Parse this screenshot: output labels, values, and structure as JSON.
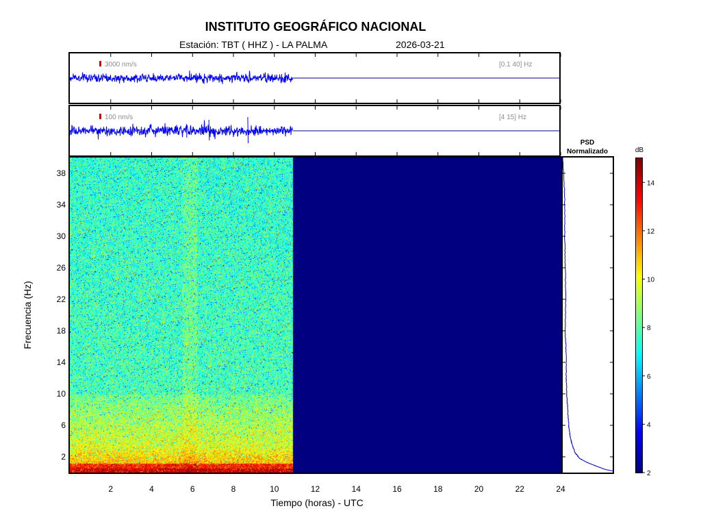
{
  "title": "INSTITUTO GEOGRÁFICO NACIONAL",
  "station_label": "Estación:  TBT ( HHZ ) - LA PALMA",
  "date": "2026-03-21",
  "colors": {
    "trace": "#0000ff",
    "frame": "#000000",
    "scale_mark": "#e00000",
    "flatline": "#00008c",
    "no_data": "#00008c"
  },
  "chart_data": [
    {
      "type": "line",
      "name": "trace-broadband",
      "scale_text": "3000 nm/s",
      "band_text": "[0.1 40] Hz",
      "x_range": [
        0,
        24
      ],
      "data_end_hours": 10.9,
      "spikes_at_hours": []
    },
    {
      "type": "line",
      "name": "trace-filtered",
      "scale_text": "100 nm/s",
      "band_text": "[4 15] Hz",
      "x_range": [
        0,
        24
      ],
      "data_end_hours": 10.9,
      "spikes_at_hours": [
        6.8,
        8.7,
        5.7,
        3.5
      ]
    },
    {
      "type": "heatmap",
      "name": "spectrogram",
      "xlabel": "Tiempo (horas) - UTC",
      "ylabel": "Frecuencia  (Hz)",
      "xlim": [
        0,
        24
      ],
      "ylim": [
        0,
        40
      ],
      "x_ticks": [
        2,
        4,
        6,
        8,
        10,
        12,
        14,
        16,
        18,
        20,
        22,
        24
      ],
      "y_ticks": [
        2,
        6,
        10,
        14,
        18,
        22,
        26,
        30,
        34,
        38
      ],
      "data_end_hours": 10.9,
      "typical_db_high_freq": 7.5,
      "typical_db_low_freq": 11,
      "typical_db_lowest_band": 13.5,
      "no_data_db": 2
    },
    {
      "type": "line",
      "name": "psd",
      "title_line1": "PSD",
      "title_line2": "Normalizado",
      "x": [
        0.0,
        0.04,
        0.04,
        0.05,
        0.06,
        0.05,
        0.07,
        0.07,
        0.08,
        0.1,
        0.12,
        0.15,
        0.19,
        0.25,
        0.34,
        0.48,
        0.68,
        0.85,
        1.0
      ],
      "y": [
        40,
        35,
        30,
        26,
        22,
        18,
        15,
        12,
        10,
        8,
        6,
        4.5,
        3.5,
        2.5,
        1.8,
        1.3,
        0.8,
        0.4,
        0.2
      ]
    },
    {
      "type": "colorbar",
      "name": "colorbar",
      "unit": "dB",
      "range": [
        2,
        15
      ],
      "ticks": [
        2,
        4,
        6,
        8,
        10,
        12,
        14
      ],
      "colormap": "jet"
    }
  ]
}
